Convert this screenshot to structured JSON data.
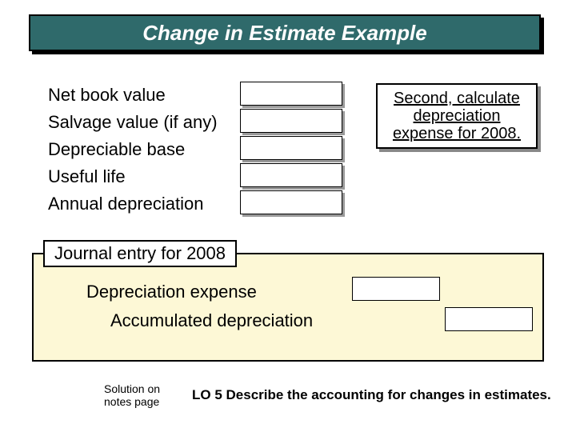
{
  "title": "Change in Estimate Example",
  "labels": {
    "net_book_value": "Net book value",
    "salvage_value": "Salvage value (if any)",
    "depreciable_base": "Depreciable base",
    "useful_life": "Useful life",
    "annual_depreciation": "Annual depreciation"
  },
  "callout": "Second, calculate depreciation expense for 2008.",
  "journal": {
    "tab": "Journal entry for 2008",
    "line1": "Depreciation expense",
    "line2": "Accumulated depreciation"
  },
  "solution_note_l1": "Solution on",
  "solution_note_l2": "notes page",
  "lo": "LO 5 Describe the accounting for changes in estimates.",
  "colors": {
    "banner_bg": "#2f6a6b",
    "panel_bg": "#fdf8d6"
  }
}
